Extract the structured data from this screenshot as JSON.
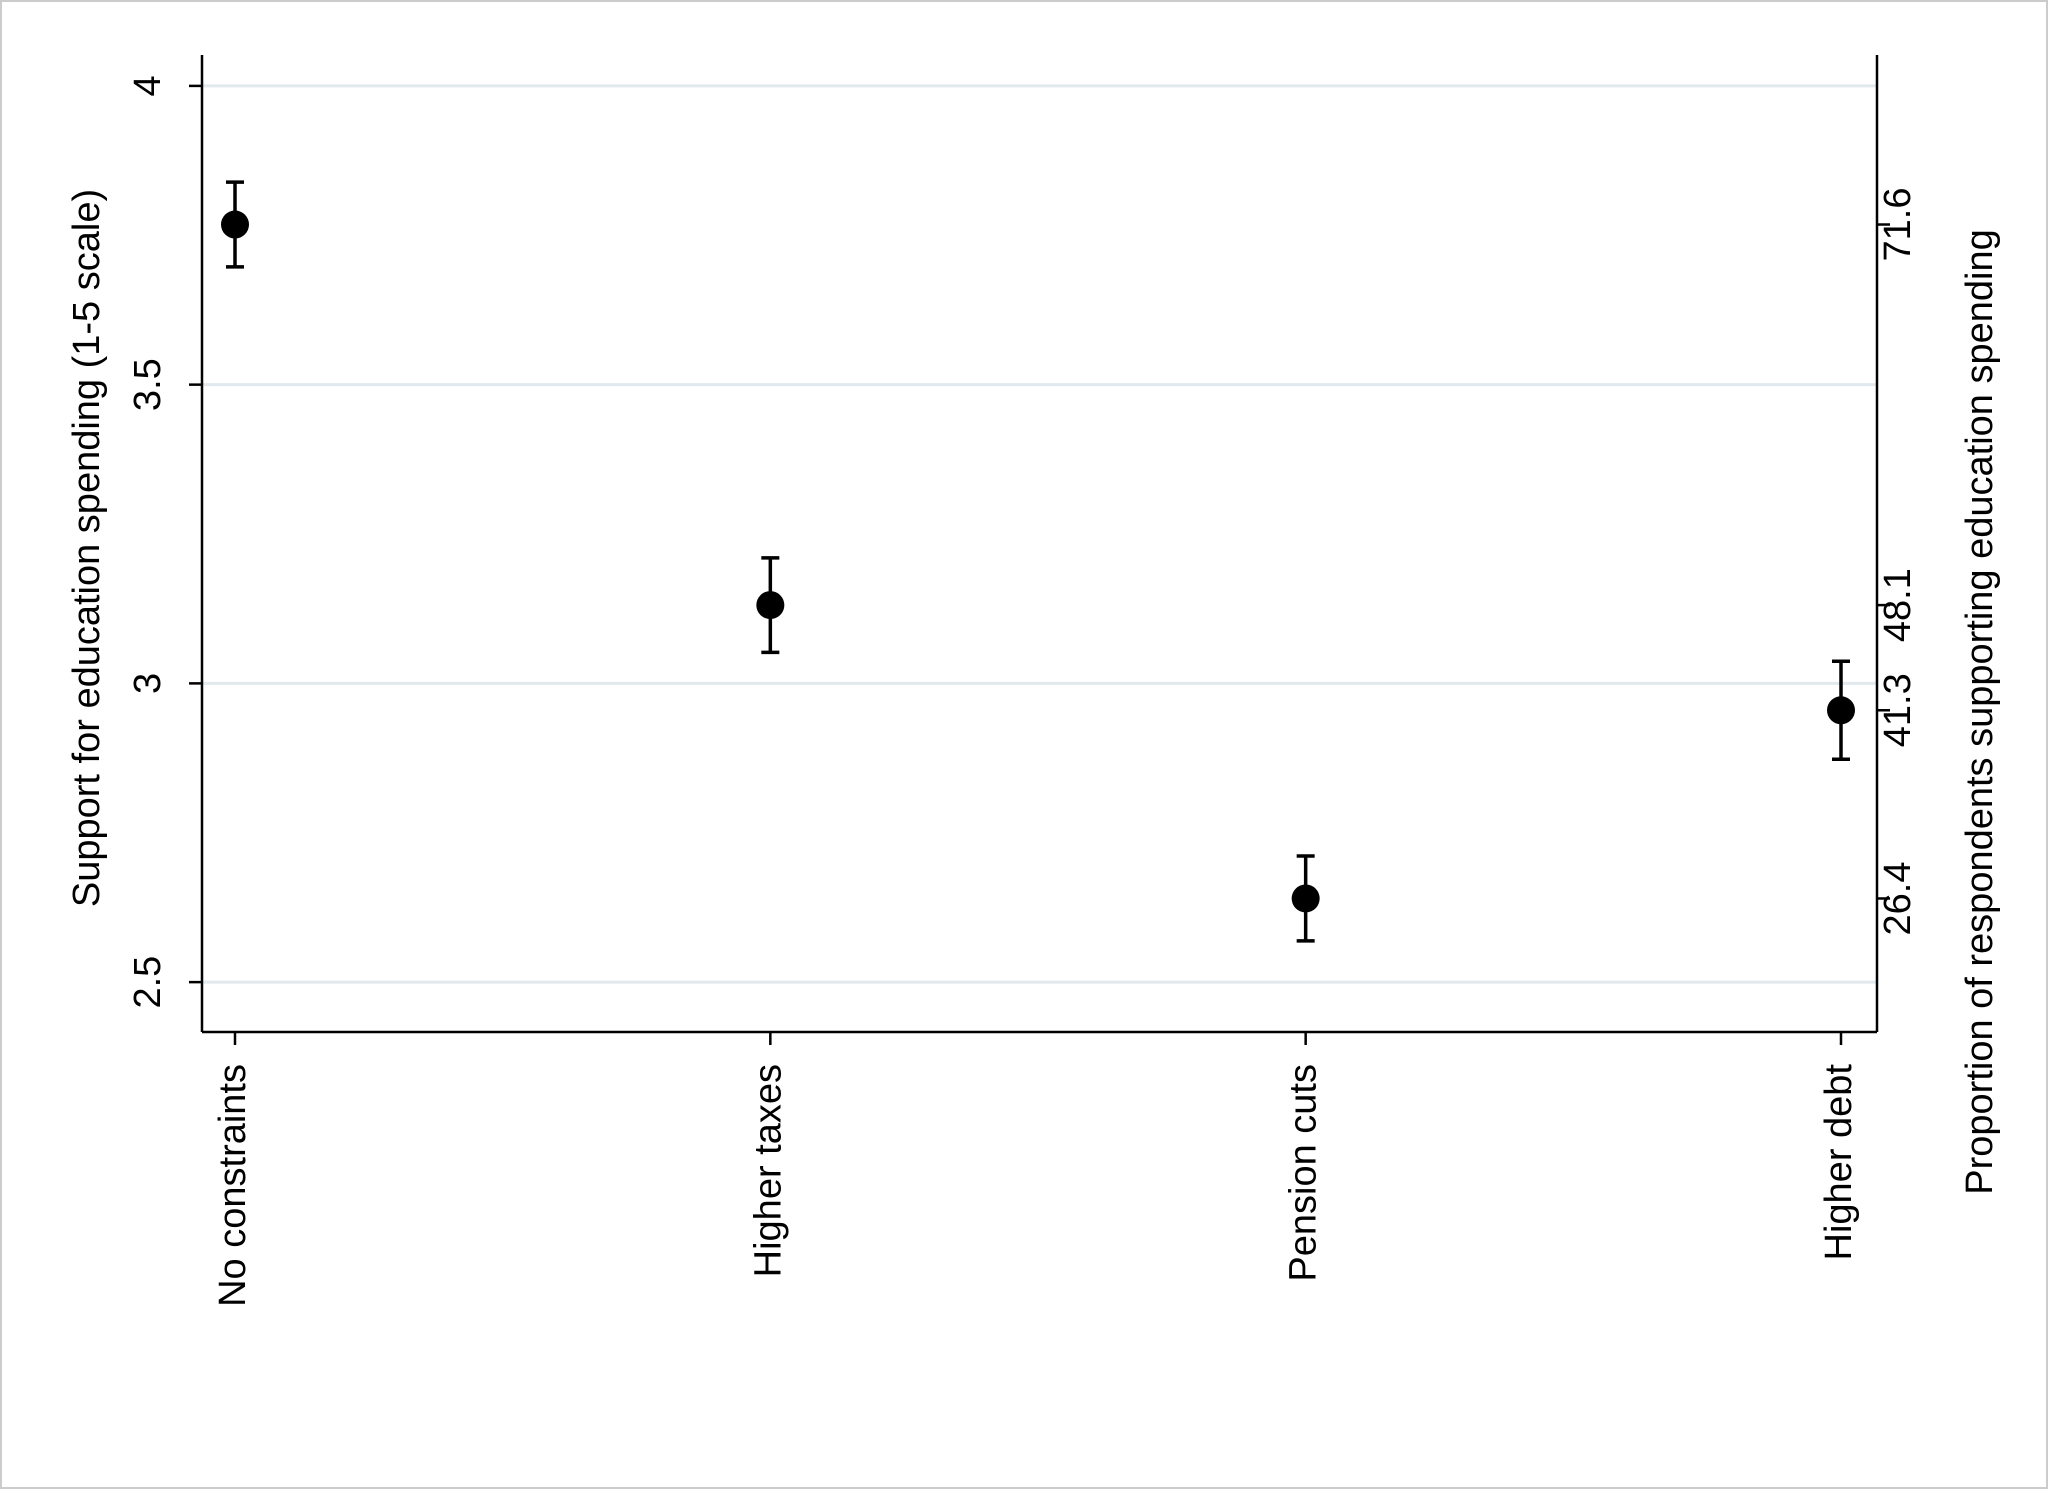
{
  "chart_data": {
    "type": "dot_errorbar",
    "y_axis_label": "Support for education spending (1-5 scale)",
    "y2_axis_label": "Proportion of respondents supporting education spending",
    "categories": [
      "No constraints",
      "Higher taxes",
      "Pension cuts",
      "Higher debt"
    ],
    "values": [
      3.768,
      3.131,
      2.64,
      2.955
    ],
    "errors": [
      0.071,
      0.079,
      0.071,
      0.082
    ],
    "right_axis_labels": [
      71.6,
      48.1,
      26.4,
      41.3
    ],
    "color": "#000000",
    "ylim": [
      2.45,
      4.04
    ],
    "yticks": [
      2.5,
      3,
      3.5,
      4
    ],
    "grid": true
  }
}
